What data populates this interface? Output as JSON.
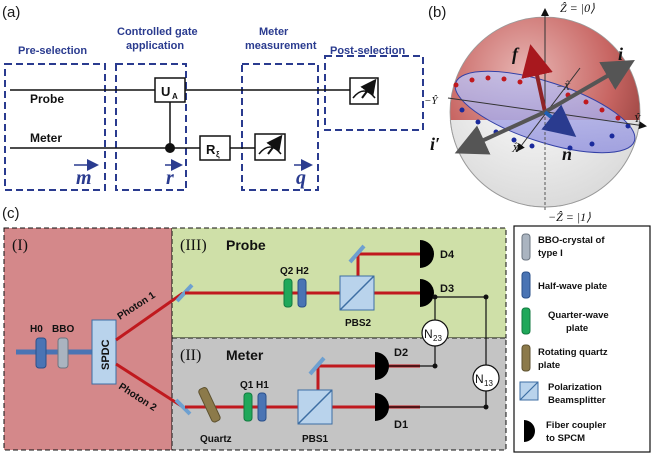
{
  "panel_a": {
    "label": "(a)",
    "stage_labels": {
      "preselection": "Pre-selection",
      "controlled_gate_1": "Controlled gate",
      "controlled_gate_2": "application",
      "meter_measure_1": "Meter",
      "meter_measure_2": "measurement",
      "postselection": "Post-selection"
    },
    "probe": "Probe",
    "meter": "Meter",
    "gate_ua": "U",
    "gate_ua_sub": "A",
    "gate_r": "R",
    "gate_r_sub": "ξ",
    "vec_m": "m",
    "vec_r": "r",
    "vec_q": "q"
  },
  "panel_b": {
    "label": "(b)",
    "z_plus": "Ẑ = |0⟩",
    "z_minus": "−Ẑ = |1⟩",
    "y_plus": "Ŷ",
    "y_minus": "−Ŷ",
    "x_plus": "X̂",
    "x_minus": "−X̂",
    "vec_f": "f",
    "vec_i": "i",
    "vec_i_prime": "i′",
    "vec_n": "n"
  },
  "panel_c": {
    "label": "(c)",
    "region_I": "(I)",
    "region_II": "(II)",
    "region_III": "(III)",
    "probe_title": "Probe",
    "meter_title": "Meter",
    "h0": "H0",
    "bbo": "BBO",
    "spdc": "SPDC",
    "photon1": "Photon 1",
    "photon2": "Photon 2",
    "q2": "Q2",
    "h2": "H2",
    "q1": "Q1",
    "h1": "H1",
    "pbs2": "PBS2",
    "pbs1": "PBS1",
    "quartz": "Quartz",
    "d1": "D1",
    "d2": "D2",
    "d3": "D3",
    "d4": "D4",
    "n23": "N",
    "n23_sub": "23",
    "n13": "N",
    "n13_sub": "13"
  },
  "legend": [
    {
      "label_1": "BBO-crystal  of",
      "label_2": "type I",
      "color": "#aab4c0"
    },
    {
      "label_1": "Half-wave plate",
      "label_2": "",
      "color": "#4a74b4"
    },
    {
      "label_1": "Quarter-wave",
      "label_2": "plate",
      "color": "#1fa85a"
    },
    {
      "label_1": "Rotating quartz",
      "label_2": "plate",
      "color": "#8c7a4a"
    },
    {
      "label_1": "Polarization",
      "label_2": "Beamsplitter",
      "color": "#b9d3ec"
    },
    {
      "label_1": "Fiber coupler",
      "label_2": "to SPCM",
      "color": "#000000"
    }
  ],
  "colors": {
    "dash_blue": "#2a3b8f",
    "beam_red": "#c0191e",
    "region_I": "#d4888a",
    "region_III": "#cfe0a8",
    "region_II": "#c4c4c4"
  }
}
